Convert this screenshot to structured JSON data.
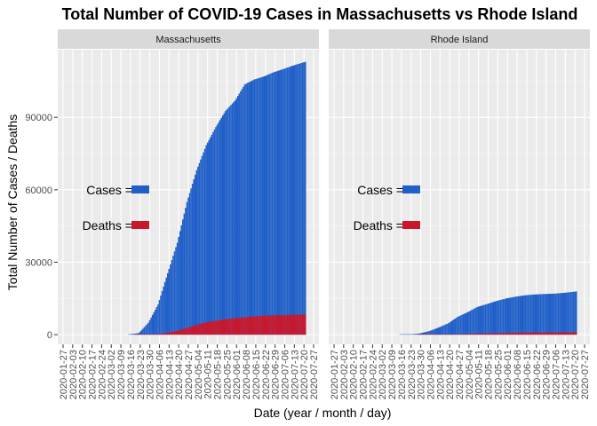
{
  "chart_data": {
    "type": "bar",
    "title": "Total Number of COVID-19 Cases in Massachusetts vs Rhode Island",
    "xlabel": "Date (year / month / day)",
    "ylabel": "Total Number of Cases / Deaths",
    "ylim": [
      -4000,
      118000
    ],
    "yticks": [
      "0",
      "30000",
      "60000",
      "90000"
    ],
    "grid": true,
    "stacked": false,
    "x_range": [
      "2020-01-27",
      "2020-07-27"
    ],
    "xticks": [
      "2020-01-27",
      "2020-02-03",
      "2020-02-10",
      "2020-02-17",
      "2020-02-24",
      "2020-03-02",
      "2020-03-09",
      "2020-03-16",
      "2020-03-23",
      "2020-03-30",
      "2020-04-06",
      "2020-04-13",
      "2020-04-20",
      "2020-04-27",
      "2020-05-04",
      "2020-05-11",
      "2020-05-18",
      "2020-05-25",
      "2020-06-01",
      "2020-06-08",
      "2020-06-15",
      "2020-06-22",
      "2020-06-29",
      "2020-07-06",
      "2020-07-13",
      "2020-07-20",
      "2020-07-27"
    ],
    "series_style": [
      {
        "key": "cases",
        "color": "#1f5fc8",
        "legend_label": "Cases ="
      },
      {
        "key": "deaths",
        "color": "#c8182d",
        "legend_label": "Deaths ="
      }
    ],
    "panels": [
      {
        "name": "Massachusetts",
        "cases": [
          [
            "2020-03-15",
            164
          ],
          [
            "2020-03-22",
            646
          ],
          [
            "2020-03-29",
            4955
          ],
          [
            "2020-04-05",
            12500
          ],
          [
            "2020-04-12",
            25475
          ],
          [
            "2020-04-19",
            38077
          ],
          [
            "2020-04-26",
            54938
          ],
          [
            "2020-05-03",
            68087
          ],
          [
            "2020-05-10",
            78462
          ],
          [
            "2020-05-17",
            86010
          ],
          [
            "2020-05-24",
            92675
          ],
          [
            "2020-05-31",
            96965
          ],
          [
            "2020-06-07",
            103626
          ],
          [
            "2020-06-14",
            105690
          ],
          [
            "2020-06-21",
            106936
          ],
          [
            "2020-06-28",
            108667
          ],
          [
            "2020-07-05",
            109974
          ],
          [
            "2020-07-12",
            111398
          ],
          [
            "2020-07-21",
            113000
          ]
        ],
        "deaths": [
          [
            "2020-03-20",
            1
          ],
          [
            "2020-03-27",
            44
          ],
          [
            "2020-04-03",
            192
          ],
          [
            "2020-04-10",
            599
          ],
          [
            "2020-04-17",
            1404
          ],
          [
            "2020-04-24",
            2360
          ],
          [
            "2020-05-01",
            3716
          ],
          [
            "2020-05-08",
            4840
          ],
          [
            "2020-05-15",
            5592
          ],
          [
            "2020-05-22",
            6228
          ],
          [
            "2020-05-29",
            6718
          ],
          [
            "2020-06-05",
            7085
          ],
          [
            "2020-06-12",
            7538
          ],
          [
            "2020-06-19",
            7800
          ],
          [
            "2020-06-26",
            7962
          ],
          [
            "2020-07-03",
            8095
          ],
          [
            "2020-07-10",
            8183
          ],
          [
            "2020-07-21",
            8400
          ]
        ]
      },
      {
        "name": "Rhode Island",
        "cases": [
          [
            "2020-03-15",
            20
          ],
          [
            "2020-03-22",
            83
          ],
          [
            "2020-03-29",
            488
          ],
          [
            "2020-04-05",
            1450
          ],
          [
            "2020-04-12",
            2976
          ],
          [
            "2020-04-19",
            4706
          ],
          [
            "2020-04-26",
            7439
          ],
          [
            "2020-05-03",
            9289
          ],
          [
            "2020-05-10",
            11450
          ],
          [
            "2020-05-17",
            12674
          ],
          [
            "2020-05-24",
            13952
          ],
          [
            "2020-05-31",
            14991
          ],
          [
            "2020-06-07",
            15756
          ],
          [
            "2020-06-14",
            16337
          ],
          [
            "2020-06-21",
            16661
          ],
          [
            "2020-06-28",
            16853
          ],
          [
            "2020-07-05",
            17002
          ],
          [
            "2020-07-12",
            17312
          ],
          [
            "2020-07-21",
            17900
          ]
        ],
        "deaths": [
          [
            "2020-03-29",
            8
          ],
          [
            "2020-04-05",
            30
          ],
          [
            "2020-04-12",
            80
          ],
          [
            "2020-04-19",
            150
          ],
          [
            "2020-04-26",
            233
          ],
          [
            "2020-05-03",
            320
          ],
          [
            "2020-05-10",
            430
          ],
          [
            "2020-05-17",
            532
          ],
          [
            "2020-05-24",
            634
          ],
          [
            "2020-05-31",
            705
          ],
          [
            "2020-06-07",
            833
          ],
          [
            "2020-06-14",
            893
          ],
          [
            "2020-06-21",
            929
          ],
          [
            "2020-06-28",
            956
          ],
          [
            "2020-07-05",
            965
          ],
          [
            "2020-07-21",
            1000
          ]
        ]
      }
    ]
  }
}
